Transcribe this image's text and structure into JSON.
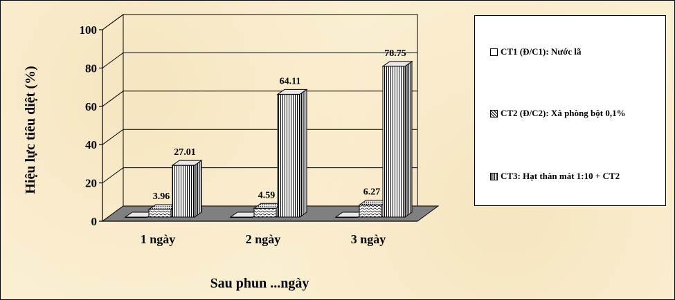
{
  "chart_data": {
    "type": "bar",
    "title": "",
    "xlabel": "Sau phun ...ngày",
    "ylabel": "Hiệu lực tiêu diệt (%)",
    "ylim": [
      0,
      100
    ],
    "yticks": [
      0,
      20,
      40,
      60,
      80,
      100
    ],
    "grid": true,
    "legend_position": "right",
    "categories": [
      "1 ngày",
      "2 ngày",
      "3 ngày"
    ],
    "series": [
      {
        "name": "CT1 (Đ/C1): Nước lã",
        "values": [
          0,
          0,
          0
        ],
        "data_labels": [
          "",
          "",
          ""
        ]
      },
      {
        "name": "CT2 (Đ/C2): Xà phòng bột 0,1%",
        "values": [
          3.96,
          4.59,
          6.27
        ],
        "data_labels": [
          "3.96",
          "4.59",
          "6.27"
        ]
      },
      {
        "name": "CT3: Hạt thàn mát 1:10 + CT2",
        "values": [
          27.01,
          64.11,
          78.75
        ],
        "data_labels": [
          "27.01",
          "64.11",
          "78.75"
        ]
      }
    ],
    "colors": {
      "background": "#fbefd2",
      "floor": "#808080",
      "bar_fill": "#ffffff",
      "ink": "#000000"
    }
  }
}
